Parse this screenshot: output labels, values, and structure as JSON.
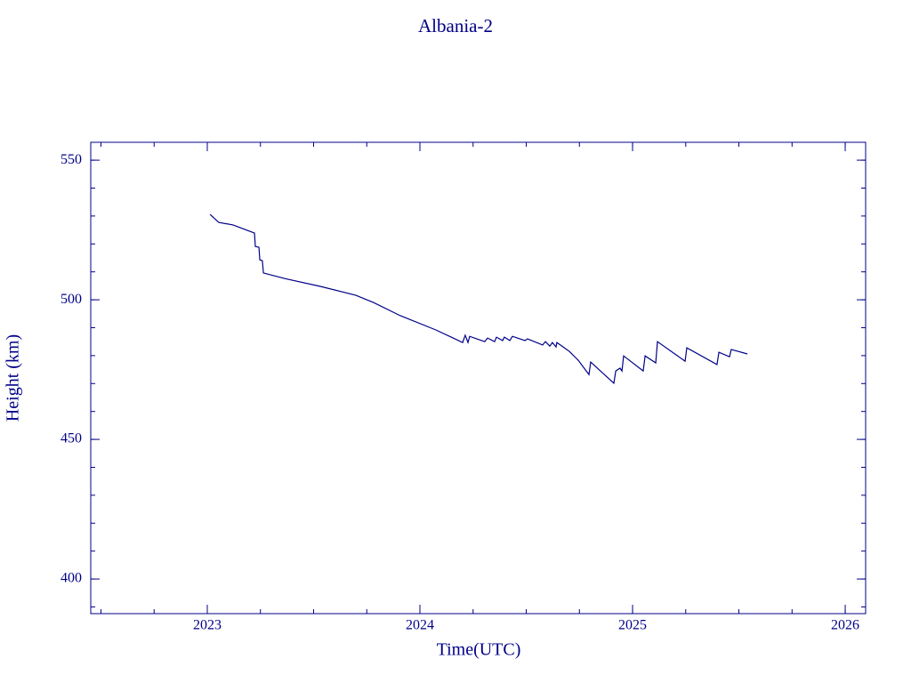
{
  "chart_data": {
    "type": "line",
    "title": "Albania-2",
    "x_label": "Time(UTC)",
    "y_label": "Height (km)",
    "color": "#000088",
    "xlim": [
      2022.452,
      2026.096
    ],
    "ylim": [
      387.6,
      556.4
    ],
    "xticks": [
      2023,
      2024,
      2025,
      2026
    ],
    "yticks": [
      400,
      450,
      500,
      550
    ],
    "series": [
      {
        "x": [
          2023.013,
          2023.054,
          2023.121,
          2023.222,
          2023.226,
          2023.243,
          2023.247,
          2023.259,
          2023.264,
          2023.364,
          2023.531,
          2023.699,
          2023.782,
          2023.908,
          2024.075,
          2024.201,
          2024.213,
          2024.226,
          2024.234,
          2024.305,
          2024.318,
          2024.351,
          2024.36,
          2024.389,
          2024.397,
          2024.423,
          2024.435,
          2024.494,
          2024.506,
          2024.577,
          2024.59,
          2024.611,
          2024.623,
          2024.64,
          2024.644,
          2024.703,
          2024.745,
          2024.795,
          2024.803,
          2024.912,
          2024.921,
          2024.941,
          2024.95,
          2024.958,
          2025.05,
          2025.059,
          2025.109,
          2025.117,
          2025.247,
          2025.255,
          2025.397,
          2025.406,
          2025.456,
          2025.464,
          2025.54
        ],
        "values": [
          530.6,
          527.7,
          526.8,
          523.9,
          519.1,
          518.8,
          514.3,
          514.0,
          509.6,
          507.6,
          504.8,
          501.6,
          499.0,
          494.3,
          489.2,
          484.7,
          487.3,
          484.7,
          486.9,
          485.0,
          486.3,
          485.0,
          486.6,
          485.4,
          486.6,
          485.4,
          486.9,
          485.4,
          486.0,
          483.8,
          485.0,
          483.4,
          484.7,
          483.1,
          484.7,
          481.5,
          478.3,
          473.2,
          477.7,
          470.1,
          474.5,
          475.5,
          474.5,
          479.9,
          474.5,
          479.9,
          477.4,
          485.0,
          478.0,
          482.8,
          476.8,
          481.2,
          479.6,
          482.2,
          480.6
        ]
      }
    ]
  }
}
